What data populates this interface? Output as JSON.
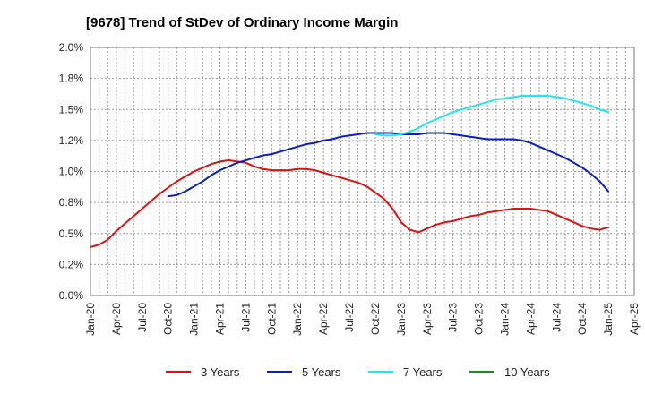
{
  "chart_data": {
    "type": "line",
    "title": "[9678]  Trend of StDev of Ordinary Income Margin",
    "xlabel": "",
    "ylabel": "",
    "ylim": [
      0,
      2.0
    ],
    "y_ticks": [
      "0.0%",
      "0.2%",
      "0.5%",
      "0.8%",
      "1.0%",
      "1.2%",
      "1.5%",
      "1.8%",
      "2.0%"
    ],
    "x_ticks": [
      "Jan-20",
      "Apr-20",
      "Jul-20",
      "Oct-20",
      "Jan-21",
      "Apr-21",
      "Jul-21",
      "Oct-21",
      "Jan-22",
      "Apr-22",
      "Jul-22",
      "Oct-22",
      "Jan-23",
      "Apr-23",
      "Jul-23",
      "Oct-23",
      "Jan-24",
      "Apr-24",
      "Jul-24",
      "Oct-24",
      "Jan-25",
      "Apr-25"
    ],
    "grid": true,
    "legend_position": "bottom",
    "series": [
      {
        "name": "3 Years",
        "color": "#dd1111",
        "points": [
          [
            "2020-01",
            0.39
          ],
          [
            "2020-02",
            0.41
          ],
          [
            "2020-03",
            0.45
          ],
          [
            "2020-04",
            0.52
          ],
          [
            "2020-05",
            0.58
          ],
          [
            "2020-06",
            0.64
          ],
          [
            "2020-07",
            0.7
          ],
          [
            "2020-08",
            0.76
          ],
          [
            "2020-09",
            0.82
          ],
          [
            "2020-10",
            0.87
          ],
          [
            "2020-11",
            0.92
          ],
          [
            "2020-12",
            0.96
          ],
          [
            "2021-01",
            1.0
          ],
          [
            "2021-02",
            1.03
          ],
          [
            "2021-03",
            1.06
          ],
          [
            "2021-04",
            1.08
          ],
          [
            "2021-05",
            1.09
          ],
          [
            "2021-06",
            1.08
          ],
          [
            "2021-07",
            1.07
          ],
          [
            "2021-08",
            1.04
          ],
          [
            "2021-09",
            1.02
          ],
          [
            "2021-10",
            1.01
          ],
          [
            "2021-11",
            1.01
          ],
          [
            "2021-12",
            1.01
          ],
          [
            "2022-01",
            1.02
          ],
          [
            "2022-02",
            1.02
          ],
          [
            "2022-03",
            1.01
          ],
          [
            "2022-04",
            0.99
          ],
          [
            "2022-05",
            0.97
          ],
          [
            "2022-06",
            0.95
          ],
          [
            "2022-07",
            0.93
          ],
          [
            "2022-08",
            0.91
          ],
          [
            "2022-09",
            0.88
          ],
          [
            "2022-10",
            0.83
          ],
          [
            "2022-11",
            0.78
          ],
          [
            "2022-12",
            0.7
          ],
          [
            "2023-01",
            0.59
          ],
          [
            "2023-02",
            0.53
          ],
          [
            "2023-03",
            0.51
          ],
          [
            "2023-04",
            0.54
          ],
          [
            "2023-05",
            0.57
          ],
          [
            "2023-06",
            0.59
          ],
          [
            "2023-07",
            0.6
          ],
          [
            "2023-08",
            0.62
          ],
          [
            "2023-09",
            0.64
          ],
          [
            "2023-10",
            0.65
          ],
          [
            "2023-11",
            0.67
          ],
          [
            "2023-12",
            0.68
          ],
          [
            "2024-01",
            0.69
          ],
          [
            "2024-02",
            0.7
          ],
          [
            "2024-03",
            0.7
          ],
          [
            "2024-04",
            0.7
          ],
          [
            "2024-05",
            0.69
          ],
          [
            "2024-06",
            0.68
          ],
          [
            "2024-07",
            0.65
          ],
          [
            "2024-08",
            0.62
          ],
          [
            "2024-09",
            0.59
          ],
          [
            "2024-10",
            0.56
          ],
          [
            "2024-11",
            0.54
          ],
          [
            "2024-12",
            0.53
          ],
          [
            "2025-01",
            0.55
          ]
        ]
      },
      {
        "name": "5 Years",
        "color": "#0a1fbf",
        "points": [
          [
            "2020-10",
            0.8
          ],
          [
            "2020-11",
            0.81
          ],
          [
            "2020-12",
            0.84
          ],
          [
            "2021-01",
            0.88
          ],
          [
            "2021-02",
            0.92
          ],
          [
            "2021-03",
            0.97
          ],
          [
            "2021-04",
            1.01
          ],
          [
            "2021-05",
            1.04
          ],
          [
            "2021-06",
            1.07
          ],
          [
            "2021-07",
            1.09
          ],
          [
            "2021-08",
            1.11
          ],
          [
            "2021-09",
            1.13
          ],
          [
            "2021-10",
            1.14
          ],
          [
            "2021-11",
            1.16
          ],
          [
            "2021-12",
            1.18
          ],
          [
            "2022-01",
            1.2
          ],
          [
            "2022-02",
            1.22
          ],
          [
            "2022-03",
            1.23
          ],
          [
            "2022-04",
            1.25
          ],
          [
            "2022-05",
            1.26
          ],
          [
            "2022-06",
            1.28
          ],
          [
            "2022-07",
            1.29
          ],
          [
            "2022-08",
            1.3
          ],
          [
            "2022-09",
            1.31
          ],
          [
            "2022-10",
            1.31
          ],
          [
            "2022-11",
            1.31
          ],
          [
            "2022-12",
            1.31
          ],
          [
            "2023-01",
            1.3
          ],
          [
            "2023-02",
            1.3
          ],
          [
            "2023-03",
            1.3
          ],
          [
            "2023-04",
            1.31
          ],
          [
            "2023-05",
            1.31
          ],
          [
            "2023-06",
            1.31
          ],
          [
            "2023-07",
            1.3
          ],
          [
            "2023-08",
            1.29
          ],
          [
            "2023-09",
            1.28
          ],
          [
            "2023-10",
            1.27
          ],
          [
            "2023-11",
            1.26
          ],
          [
            "2023-12",
            1.26
          ],
          [
            "2024-01",
            1.26
          ],
          [
            "2024-02",
            1.26
          ],
          [
            "2024-03",
            1.25
          ],
          [
            "2024-04",
            1.23
          ],
          [
            "2024-05",
            1.2
          ],
          [
            "2024-06",
            1.17
          ],
          [
            "2024-07",
            1.14
          ],
          [
            "2024-08",
            1.11
          ],
          [
            "2024-09",
            1.07
          ],
          [
            "2024-10",
            1.03
          ],
          [
            "2024-11",
            0.98
          ],
          [
            "2024-12",
            0.92
          ],
          [
            "2025-01",
            0.84
          ]
        ]
      },
      {
        "name": "7 Years",
        "color": "#22e6ee",
        "points": [
          [
            "2022-10",
            1.3
          ],
          [
            "2022-11",
            1.29
          ],
          [
            "2022-12",
            1.29
          ],
          [
            "2023-01",
            1.3
          ],
          [
            "2023-02",
            1.32
          ],
          [
            "2023-03",
            1.35
          ],
          [
            "2023-04",
            1.39
          ],
          [
            "2023-05",
            1.42
          ],
          [
            "2023-06",
            1.45
          ],
          [
            "2023-07",
            1.48
          ],
          [
            "2023-08",
            1.5
          ],
          [
            "2023-09",
            1.52
          ],
          [
            "2023-10",
            1.54
          ],
          [
            "2023-11",
            1.56
          ],
          [
            "2023-12",
            1.58
          ],
          [
            "2024-01",
            1.59
          ],
          [
            "2024-02",
            1.6
          ],
          [
            "2024-03",
            1.61
          ],
          [
            "2024-04",
            1.61
          ],
          [
            "2024-05",
            1.61
          ],
          [
            "2024-06",
            1.61
          ],
          [
            "2024-07",
            1.6
          ],
          [
            "2024-08",
            1.59
          ],
          [
            "2024-09",
            1.57
          ],
          [
            "2024-10",
            1.55
          ],
          [
            "2024-11",
            1.53
          ],
          [
            "2024-12",
            1.5
          ],
          [
            "2025-01",
            1.48
          ]
        ]
      },
      {
        "name": "10 Years",
        "color": "#1a8a1a",
        "points": []
      }
    ]
  }
}
